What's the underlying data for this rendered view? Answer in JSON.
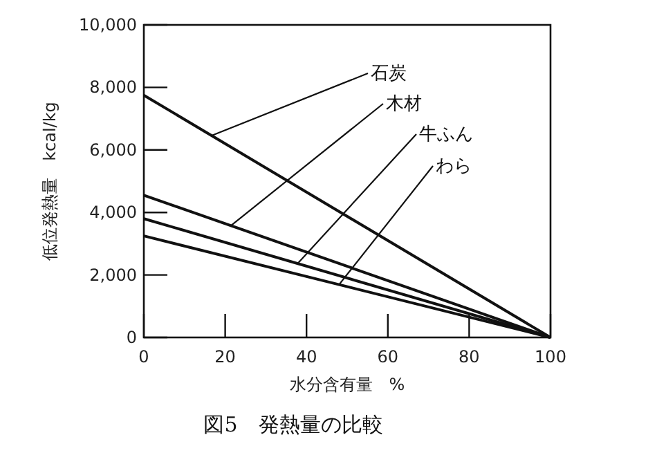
{
  "chart_data": {
    "type": "line",
    "title": "図5　発熱量の比較",
    "xlabel": "水分含有量　%",
    "ylabel": "低位発熱量　kcal/kg",
    "x": [
      0,
      100
    ],
    "series": [
      {
        "color": "#111111",
        "values": [
          7750,
          0
        ]
      },
      {
        "color": "#111111",
        "values": [
          4550,
          0
        ]
      },
      {
        "color": "#111111",
        "values": [
          3800,
          0
        ]
      },
      {
        "color": "#111111",
        "values": [
          3250,
          0
        ]
      }
    ],
    "xlim": [
      0,
      100
    ],
    "xticks": [
      0,
      20,
      40,
      60,
      80,
      100
    ],
    "ylim": [
      0,
      10000
    ],
    "yticks": [
      {
        "value": 0,
        "label": "0"
      },
      {
        "value": 2000,
        "label": "2,000"
      },
      {
        "value": 4000,
        "label": "4,000"
      },
      {
        "value": 6000,
        "label": "6,000"
      },
      {
        "value": 8000,
        "label": "8,000"
      },
      {
        "value": 10000,
        "label": "10,000"
      }
    ],
    "grid": false,
    "marker": "none",
    "line_style": "solid",
    "annotations": [
      {
        "text": "石炭",
        "x": 16.7,
        "y": 6460
      },
      {
        "text": "木材",
        "x": 21.4,
        "y": 3576
      },
      {
        "text": "牛ふん",
        "x": 37.8,
        "y": 2364
      },
      {
        "text": "わら",
        "x": 48,
        "y": 1690
      }
    ]
  }
}
